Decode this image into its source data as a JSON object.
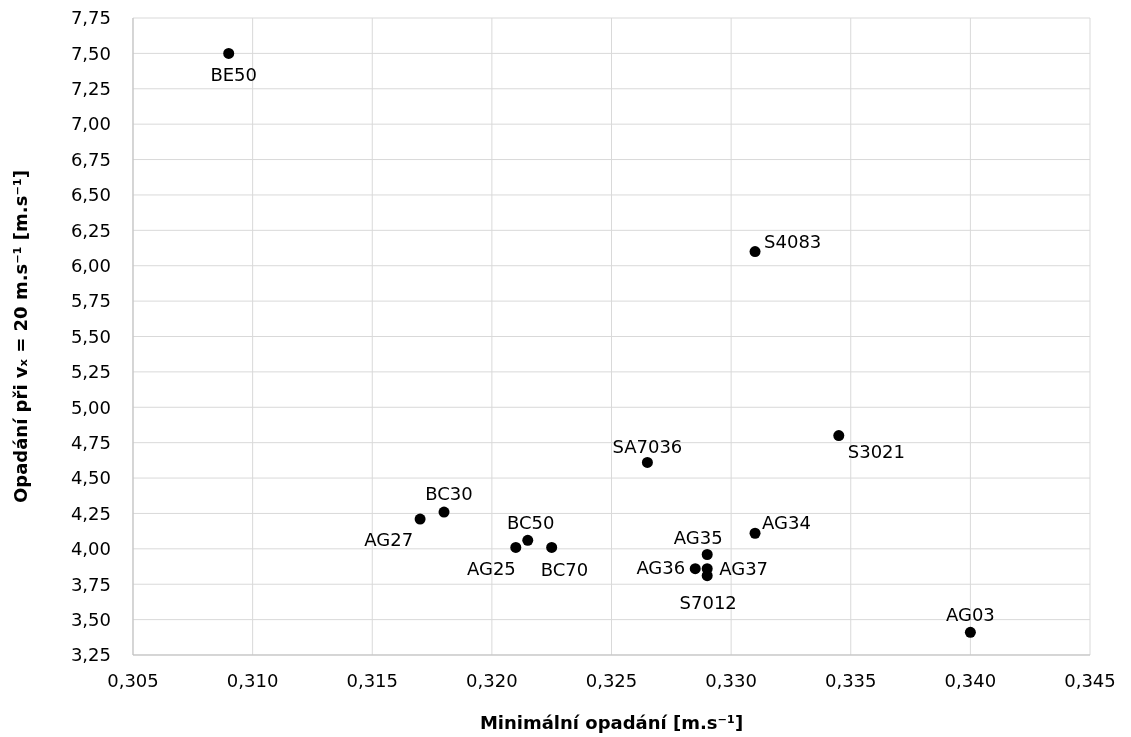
{
  "chart_data": {
    "type": "scatter",
    "xlabel": "Minimální opadání [m.s⁻¹]",
    "ylabel": "Opadání při vₓ = 20 m.s⁻¹ [m.s⁻¹]",
    "series": [
      {
        "color": "#000000",
        "x": [
          0.309,
          0.331,
          0.3345,
          0.3265,
          0.318,
          0.317,
          0.321,
          0.3215,
          0.3225,
          0.329,
          0.3285,
          0.329,
          0.329,
          0.331,
          0.34
        ],
        "values": [
          7.5,
          6.1,
          4.8,
          4.61,
          4.26,
          4.21,
          4.01,
          4.06,
          4.01,
          3.96,
          3.86,
          3.86,
          3.81,
          4.11,
          3.41
        ]
      }
    ],
    "annotations": [
      {
        "text": "BE50",
        "x": 0.309,
        "y": 7.5
      },
      {
        "text": "S4083",
        "x": 0.331,
        "y": 6.1
      },
      {
        "text": "S3021",
        "x": 0.3345,
        "y": 4.8
      },
      {
        "text": "SA7036",
        "x": 0.3265,
        "y": 4.61
      },
      {
        "text": "BC30",
        "x": 0.318,
        "y": 4.26
      },
      {
        "text": "AG27",
        "x": 0.317,
        "y": 4.21
      },
      {
        "text": "AG25",
        "x": 0.321,
        "y": 4.01
      },
      {
        "text": "BC50",
        "x": 0.3215,
        "y": 4.06
      },
      {
        "text": "BC70",
        "x": 0.3225,
        "y": 4.01
      },
      {
        "text": "AG35",
        "x": 0.329,
        "y": 3.96
      },
      {
        "text": "AG36",
        "x": 0.3285,
        "y": 3.86
      },
      {
        "text": "AG37",
        "x": 0.329,
        "y": 3.86
      },
      {
        "text": "S7012",
        "x": 0.329,
        "y": 3.81
      },
      {
        "text": "AG34",
        "x": 0.331,
        "y": 4.11
      },
      {
        "text": "AG03",
        "x": 0.34,
        "y": 3.41
      }
    ],
    "xlim": [
      0.305,
      0.345
    ],
    "xticks": [
      {
        "value": 0.305,
        "label": "0,305"
      },
      {
        "value": 0.31,
        "label": "0,310"
      },
      {
        "value": 0.315,
        "label": "0,315"
      },
      {
        "value": 0.32,
        "label": "0,320"
      },
      {
        "value": 0.325,
        "label": "0,325"
      },
      {
        "value": 0.33,
        "label": "0,330"
      },
      {
        "value": 0.335,
        "label": "0,335"
      },
      {
        "value": 0.34,
        "label": "0,340"
      },
      {
        "value": 0.345,
        "label": "0,345"
      }
    ],
    "ylim": [
      3.25,
      7.75
    ],
    "yticks": [
      {
        "value": 3.25,
        "label": "3,25"
      },
      {
        "value": 3.5,
        "label": "3,50"
      },
      {
        "value": 3.75,
        "label": "3,75"
      },
      {
        "value": 4,
        "label": "4,00"
      },
      {
        "value": 4.25,
        "label": "4,25"
      },
      {
        "value": 4.5,
        "label": "4,50"
      },
      {
        "value": 4.75,
        "label": "4,75"
      },
      {
        "value": 5,
        "label": "5,00"
      },
      {
        "value": 5.25,
        "label": "5,25"
      },
      {
        "value": 5.5,
        "label": "5,50"
      },
      {
        "value": 5.75,
        "label": "5,75"
      },
      {
        "value": 6,
        "label": "6,00"
      },
      {
        "value": 6.25,
        "label": "6,25"
      },
      {
        "value": 6.5,
        "label": "6,50"
      },
      {
        "value": 6.75,
        "label": "6,75"
      },
      {
        "value": 7,
        "label": "7,00"
      },
      {
        "value": 7.25,
        "label": "7,25"
      },
      {
        "value": 7.5,
        "label": "7,50"
      },
      {
        "value": 7.75,
        "label": "7,75"
      }
    ],
    "grid": true,
    "marker": "circle"
  }
}
